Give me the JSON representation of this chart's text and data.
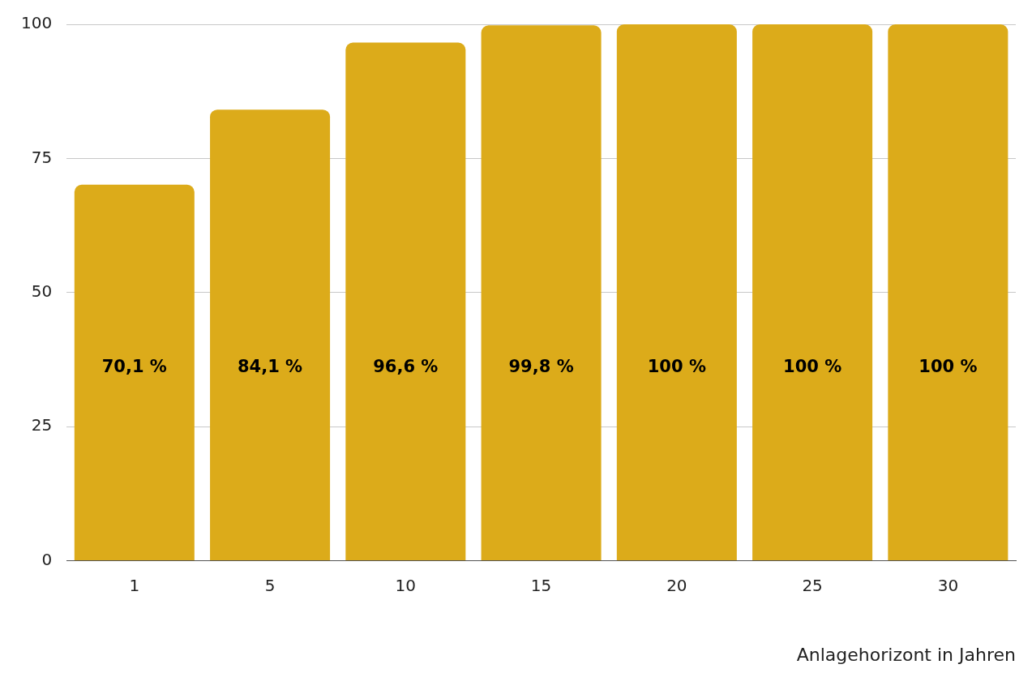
{
  "chart_data": {
    "type": "bar",
    "xlabel": "Anlagehorizont in Jahren",
    "categories": [
      "1",
      "5",
      "10",
      "15",
      "20",
      "25",
      "30"
    ],
    "values": [
      70.1,
      84.1,
      96.6,
      99.8,
      100,
      100,
      100
    ],
    "value_labels": [
      "70,1 %",
      "84,1 %",
      "96,6 %",
      "99,8 %",
      "100 %",
      "100 %",
      "100 %"
    ],
    "color": "#dcab1a",
    "ylim": [
      0,
      100
    ],
    "yticks": [
      0,
      25,
      50,
      75,
      100
    ],
    "grid": "y",
    "legend": false
  }
}
